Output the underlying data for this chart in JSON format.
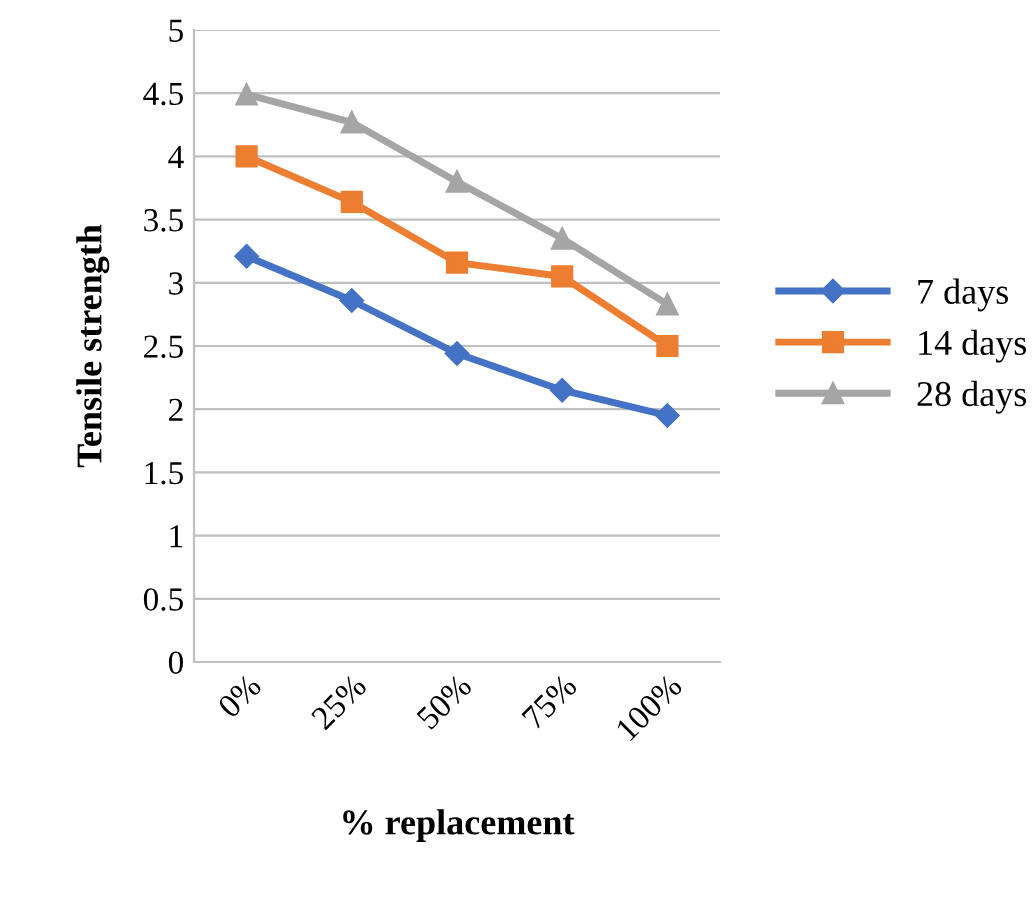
{
  "chart_data": {
    "type": "line",
    "xlabel": "% replacement",
    "ylabel": "Tensile strength",
    "categories": [
      "0%",
      "25%",
      "50%",
      "75%",
      "100%"
    ],
    "series": [
      {
        "name": "7 days",
        "color": "#4472c4",
        "marker": "diamond",
        "values": [
          3.21,
          2.86,
          2.44,
          2.15,
          1.95
        ]
      },
      {
        "name": "14 days",
        "color": "#ed7d31",
        "marker": "square",
        "values": [
          4.0,
          3.64,
          3.16,
          3.05,
          2.5
        ]
      },
      {
        "name": "28 days",
        "color": "#a5a5a5",
        "marker": "triangle",
        "values": [
          4.49,
          4.27,
          3.8,
          3.35,
          2.83
        ]
      }
    ],
    "ylim": [
      0,
      5
    ],
    "yticks": [
      0,
      0.5,
      1,
      1.5,
      2,
      2.5,
      3,
      3.5,
      4,
      4.5,
      5
    ],
    "grid": "y",
    "legend": "right",
    "line_style": "solid"
  }
}
